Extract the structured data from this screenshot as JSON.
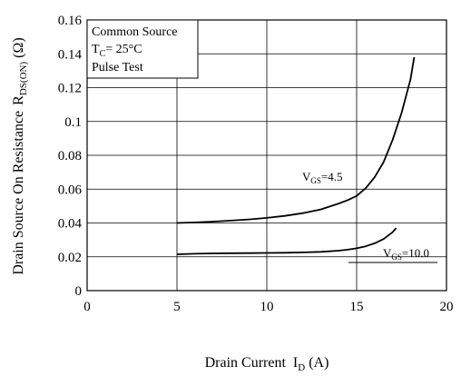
{
  "chart_data": {
    "type": "line",
    "xlabel_main": "Drain Current",
    "xlabel_sym": "I",
    "xlabel_sub": "D",
    "xlabel_unit": "(A)",
    "ylabel_main": "Drain Source On Resistance",
    "ylabel_sym": "R",
    "ylabel_sub": "DS(ON)",
    "ylabel_unit": "(Ω)",
    "xlim": [
      0,
      20
    ],
    "ylim": [
      0,
      0.16
    ],
    "xticks": [
      0,
      5,
      10,
      15,
      20
    ],
    "xtick_labels": [
      "0",
      "5",
      "10",
      "15",
      "20"
    ],
    "yticks": [
      0,
      0.02,
      0.04,
      0.06,
      0.08,
      0.1,
      0.12,
      0.14,
      0.16
    ],
    "ytick_labels": [
      "0",
      "0.02",
      "0.04",
      "0.06",
      "0.08",
      "0.1",
      "0.12",
      "0.14",
      "0.16"
    ],
    "grid": true,
    "legend_box": {
      "line1": "Common Source",
      "line2_sym": "T",
      "line2_sub": "C",
      "line2_rest": "= 25°C",
      "line3": "Pulse Test"
    },
    "series": [
      {
        "name_sym": "V",
        "name_sub": "GS",
        "name_rest": "=4.5",
        "x": [
          5,
          6,
          7,
          8,
          9,
          10,
          11,
          12,
          13,
          14,
          14.5,
          15,
          15.5,
          16,
          16.5,
          17,
          17.5,
          18,
          18.2
        ],
        "y": [
          0.04,
          0.0403,
          0.0408,
          0.0414,
          0.0421,
          0.043,
          0.0442,
          0.0458,
          0.048,
          0.0515,
          0.0535,
          0.056,
          0.0605,
          0.067,
          0.076,
          0.089,
          0.105,
          0.125,
          0.138
        ]
      },
      {
        "name_sym": "V",
        "name_sub": "GS",
        "name_rest": "=10.0",
        "x": [
          5,
          6,
          7,
          8,
          9,
          10,
          11,
          12,
          13,
          14,
          14.5,
          15,
          15.5,
          16,
          16.5,
          17,
          17.2
        ],
        "y": [
          0.0215,
          0.0218,
          0.022,
          0.0221,
          0.0222,
          0.0223,
          0.0224,
          0.0226,
          0.0229,
          0.0236,
          0.0242,
          0.025,
          0.0262,
          0.028,
          0.0305,
          0.0345,
          0.037
        ]
      }
    ]
  }
}
